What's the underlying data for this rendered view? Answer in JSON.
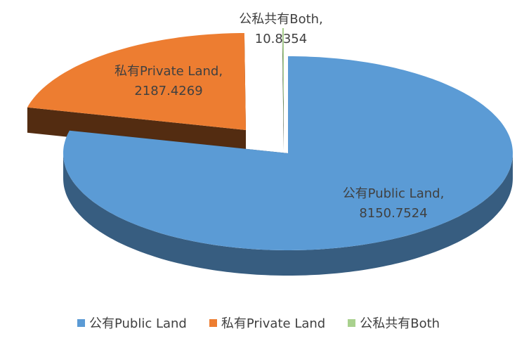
{
  "chart_data": {
    "type": "pie3d",
    "categories": [
      "公有Public Land",
      "私有Private Land",
      "公私共有Both"
    ],
    "values": [
      8150.7524,
      2187.4269,
      10.8354
    ],
    "value_labels": [
      "公有Public Land, 8150.7524",
      "私有Private Land, 2187.4269",
      "公私共有Both, 10.8354"
    ],
    "colors": [
      "#5b9bd5",
      "#ed7d31",
      "#a9d18e"
    ],
    "legend": "bottom"
  }
}
